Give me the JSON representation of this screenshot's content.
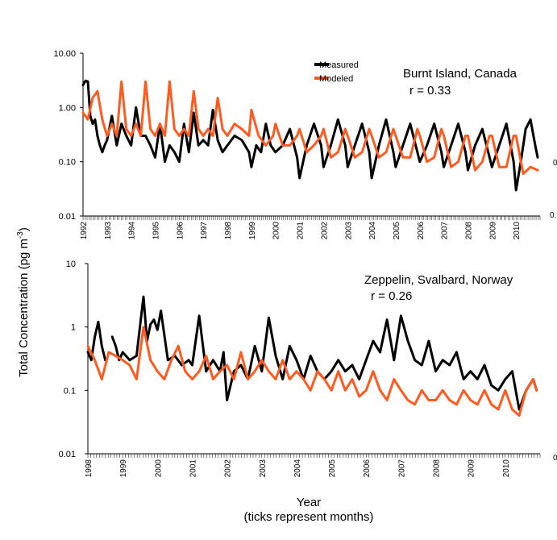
{
  "y_axis_label": "Total Concentration (pg m",
  "y_axis_label_sup": "-3",
  "y_axis_label_close": ")",
  "x_axis_label": "Year",
  "x_axis_sublabel": "(ticks represent months)",
  "edge_fragments": [
    "0",
    "0.",
    "0"
  ],
  "chart_data": [
    {
      "type": "line",
      "title": "Burnt Island, Canada",
      "correlation": "r = 0.33",
      "yscale": "log",
      "ylim": [
        0.01,
        10
      ],
      "ytick_labels": [
        "10.00",
        "1.00",
        "0.10",
        "0.01"
      ],
      "ytick_values": [
        10,
        1,
        0.1,
        0.01
      ],
      "xlim": [
        1992,
        2011
      ],
      "x_tick_labels": [
        "1992",
        "1993",
        "1994",
        "1995",
        "1996",
        "1997",
        "1998",
        "1999",
        "2000",
        "2001",
        "2002",
        "2003",
        "2004",
        "2005",
        "2006",
        "2007",
        "2008",
        "2009",
        "2010"
      ],
      "legend": [
        "Measured",
        "Modeled"
      ],
      "series": [
        {
          "name": "Measured",
          "color": "#000000",
          "x": [
            1992.0,
            1992.1,
            1992.2,
            1992.3,
            1992.4,
            1992.5,
            1992.6,
            1992.7,
            1992.8,
            1992.9,
            1993.0,
            1993.2,
            1993.4,
            1993.6,
            1993.8,
            1994.0,
            1994.2,
            1994.4,
            1994.6,
            1994.8,
            1995.0,
            1995.2,
            1995.4,
            1995.6,
            1995.8,
            1996.0,
            1996.2,
            1996.4,
            1996.6,
            1996.8,
            1997.0,
            1997.2,
            1997.4,
            1997.6,
            1997.8,
            1998.0,
            1998.3,
            1998.6,
            1998.9,
            1999.0,
            1999.2,
            1999.4,
            1999.6,
            1999.8,
            2000.0,
            2000.3,
            2000.6,
            2000.9,
            2001.0,
            2001.3,
            2001.6,
            2001.9,
            2002.0,
            2002.3,
            2002.6,
            2002.9,
            2003.0,
            2003.3,
            2003.6,
            2003.9,
            2004.0,
            2004.3,
            2004.6,
            2004.9,
            2005.0,
            2005.3,
            2005.6,
            2005.9,
            2006.0,
            2006.3,
            2006.6,
            2006.9,
            2007.0,
            2007.3,
            2007.6,
            2007.9,
            2008.0,
            2008.3,
            2008.6,
            2008.9,
            2009.0,
            2009.3,
            2009.6,
            2009.9,
            2010.0,
            2010.2,
            2010.4,
            2010.6,
            2010.8,
            2010.9
          ],
          "values": [
            2.6,
            3.1,
            3.0,
            0.7,
            0.5,
            0.6,
            0.3,
            0.2,
            0.15,
            0.2,
            0.25,
            0.7,
            0.2,
            0.5,
            0.3,
            0.2,
            1.0,
            0.3,
            0.3,
            0.2,
            0.12,
            0.5,
            0.1,
            0.2,
            0.15,
            0.1,
            0.5,
            0.15,
            0.8,
            0.2,
            0.25,
            0.2,
            0.9,
            0.25,
            0.15,
            0.2,
            0.3,
            0.25,
            0.15,
            0.08,
            0.2,
            0.15,
            0.5,
            0.2,
            0.15,
            0.2,
            0.4,
            0.12,
            0.05,
            0.2,
            0.5,
            0.2,
            0.08,
            0.2,
            0.6,
            0.2,
            0.08,
            0.2,
            0.5,
            0.15,
            0.05,
            0.2,
            0.6,
            0.15,
            0.08,
            0.2,
            0.5,
            0.15,
            0.1,
            0.2,
            0.5,
            0.15,
            0.08,
            0.2,
            0.5,
            0.15,
            0.07,
            0.2,
            0.4,
            0.12,
            0.08,
            0.2,
            0.5,
            0.1,
            0.03,
            0.1,
            0.4,
            0.6,
            0.2,
            0.12
          ]
        },
        {
          "name": "Modeled",
          "color": "#ff5a1f",
          "x": [
            1992.0,
            1992.2,
            1992.4,
            1992.6,
            1992.8,
            1993.0,
            1993.2,
            1993.4,
            1993.6,
            1993.8,
            1994.0,
            1994.2,
            1994.4,
            1994.6,
            1994.8,
            1995.0,
            1995.2,
            1995.4,
            1995.6,
            1995.8,
            1996.0,
            1996.2,
            1996.4,
            1996.6,
            1996.8,
            1997.0,
            1997.2,
            1997.4,
            1997.6,
            1997.8,
            1998.0,
            1998.3,
            1998.6,
            1998.9,
            1999.0,
            1999.3,
            1999.6,
            1999.9,
            2000.0,
            2000.3,
            2000.6,
            2000.9,
            2001.0,
            2001.3,
            2001.6,
            2001.9,
            2002.0,
            2002.3,
            2002.6,
            2002.9,
            2003.0,
            2003.3,
            2003.6,
            2003.9,
            2004.0,
            2004.3,
            2004.6,
            2004.9,
            2005.0,
            2005.3,
            2005.6,
            2005.9,
            2006.0,
            2006.3,
            2006.6,
            2006.9,
            2007.0,
            2007.3,
            2007.6,
            2007.9,
            2008.0,
            2008.3,
            2008.6,
            2008.9,
            2009.0,
            2009.3,
            2009.6,
            2009.9,
            2010.0,
            2010.3,
            2010.6,
            2010.9
          ],
          "values": [
            0.8,
            0.6,
            1.5,
            2.0,
            0.6,
            0.3,
            0.5,
            0.3,
            3.0,
            0.4,
            0.3,
            0.5,
            0.3,
            3.0,
            0.4,
            0.3,
            0.5,
            0.3,
            3.0,
            0.4,
            0.3,
            0.4,
            0.3,
            2.0,
            0.4,
            0.3,
            0.4,
            0.3,
            1.5,
            0.4,
            0.3,
            0.5,
            0.4,
            0.3,
            0.9,
            0.3,
            0.2,
            0.3,
            0.5,
            0.2,
            0.2,
            0.3,
            0.4,
            0.15,
            0.2,
            0.3,
            0.4,
            0.12,
            0.15,
            0.4,
            0.3,
            0.12,
            0.15,
            0.4,
            0.3,
            0.12,
            0.15,
            0.4,
            0.3,
            0.12,
            0.12,
            0.4,
            0.3,
            0.1,
            0.12,
            0.4,
            0.3,
            0.08,
            0.1,
            0.3,
            0.3,
            0.07,
            0.1,
            0.3,
            0.3,
            0.08,
            0.08,
            0.3,
            0.3,
            0.06,
            0.08,
            0.07
          ]
        }
      ]
    },
    {
      "type": "line",
      "title": "Zeppelin, Svalbard, Norway",
      "correlation": "r = 0.26",
      "yscale": "log",
      "ylim": [
        0.01,
        10
      ],
      "ytick_labels": [
        "10",
        "1",
        "0.1",
        "0.01"
      ],
      "ytick_values": [
        10,
        1,
        0.1,
        0.01
      ],
      "xlim": [
        1998,
        2011
      ],
      "x_tick_labels": [
        "1998",
        "1999",
        "2000",
        "2001",
        "2002",
        "2003",
        "2004",
        "2005",
        "2006",
        "2007",
        "2008",
        "2009",
        "2010"
      ],
      "series": [
        {
          "name": "Measured",
          "color": "#000000",
          "x": [
            1998.0,
            1998.1,
            1998.2,
            1998.3,
            1998.4,
            1998.5,
            null,
            1998.7,
            1998.8,
            1998.9,
            1999.0,
            1999.2,
            1999.4,
            1999.6,
            1999.7,
            1999.8,
            1999.9,
            2000.0,
            2000.1,
            2000.3,
            2000.5,
            2000.7,
            2000.9,
            2001.0,
            2001.2,
            2001.4,
            2001.6,
            2001.8,
            2001.9,
            2002.0,
            2002.2,
            2002.4,
            2002.6,
            2002.8,
            2003.0,
            2003.2,
            2003.4,
            2003.6,
            2003.8,
            2004.0,
            2004.2,
            2004.4,
            2004.6,
            2004.8,
            2005.0,
            2005.2,
            2005.4,
            2005.6,
            2005.8,
            2006.0,
            2006.2,
            2006.4,
            2006.6,
            2006.8,
            2007.0,
            2007.2,
            2007.4,
            2007.6,
            2007.8,
            2008.0,
            2008.2,
            2008.4,
            2008.6,
            2008.8,
            2009.0,
            2009.2,
            2009.4,
            2009.6,
            2009.8,
            2010.0,
            2010.2,
            2010.4,
            2010.6,
            2010.8,
            2010.9
          ],
          "values": [
            0.4,
            0.3,
            0.7,
            1.2,
            0.5,
            0.3,
            null,
            0.7,
            0.5,
            0.3,
            0.4,
            0.3,
            0.35,
            3.0,
            0.6,
            1.1,
            1.3,
            0.9,
            1.8,
            0.3,
            0.35,
            0.25,
            0.3,
            0.25,
            1.5,
            0.2,
            0.3,
            0.2,
            0.4,
            0.07,
            0.2,
            0.25,
            0.15,
            0.5,
            0.2,
            1.4,
            0.35,
            0.15,
            0.5,
            0.3,
            0.15,
            0.35,
            0.2,
            0.15,
            0.2,
            0.3,
            0.2,
            0.25,
            0.15,
            0.3,
            0.6,
            0.4,
            1.3,
            0.3,
            1.5,
            0.6,
            0.3,
            0.25,
            0.6,
            0.2,
            0.3,
            0.25,
            0.4,
            0.15,
            0.2,
            0.15,
            0.25,
            0.12,
            0.1,
            0.15,
            0.2,
            0.05,
            0.1,
            0.15,
            0.1
          ]
        },
        {
          "name": "Modeled",
          "color": "#ff5a1f",
          "x": [
            1998.0,
            1998.2,
            1998.4,
            1998.6,
            1998.8,
            1999.0,
            1999.2,
            1999.4,
            1999.6,
            1999.8,
            2000.0,
            2000.2,
            2000.4,
            2000.6,
            2000.8,
            2001.0,
            2001.2,
            2001.4,
            2001.6,
            2001.8,
            2002.0,
            2002.2,
            2002.4,
            2002.6,
            2002.8,
            2003.0,
            2003.2,
            2003.4,
            2003.6,
            2003.8,
            2004.0,
            2004.2,
            2004.4,
            2004.6,
            2004.8,
            2005.0,
            2005.2,
            2005.4,
            2005.6,
            2005.8,
            2006.0,
            2006.2,
            2006.4,
            2006.6,
            2006.8,
            2007.0,
            2007.2,
            2007.4,
            2007.6,
            2007.8,
            2008.0,
            2008.2,
            2008.4,
            2008.6,
            2008.8,
            2009.0,
            2009.2,
            2009.4,
            2009.6,
            2009.8,
            2010.0,
            2010.2,
            2010.4,
            2010.6,
            2010.8,
            2010.9
          ],
          "values": [
            0.5,
            0.3,
            0.15,
            0.4,
            0.35,
            0.3,
            0.25,
            0.15,
            1.0,
            0.3,
            0.2,
            0.15,
            0.3,
            0.5,
            0.2,
            0.15,
            0.2,
            0.35,
            0.15,
            0.2,
            0.25,
            0.15,
            0.4,
            0.15,
            0.2,
            0.3,
            0.2,
            0.15,
            0.3,
            0.15,
            0.2,
            0.15,
            0.1,
            0.2,
            0.15,
            0.1,
            0.2,
            0.1,
            0.15,
            0.08,
            0.1,
            0.2,
            0.1,
            0.07,
            0.15,
            0.1,
            0.07,
            0.06,
            0.1,
            0.07,
            0.07,
            0.1,
            0.07,
            0.06,
            0.1,
            0.07,
            0.06,
            0.1,
            0.06,
            0.05,
            0.1,
            0.05,
            0.04,
            0.1,
            0.15,
            0.1
          ]
        }
      ]
    }
  ]
}
